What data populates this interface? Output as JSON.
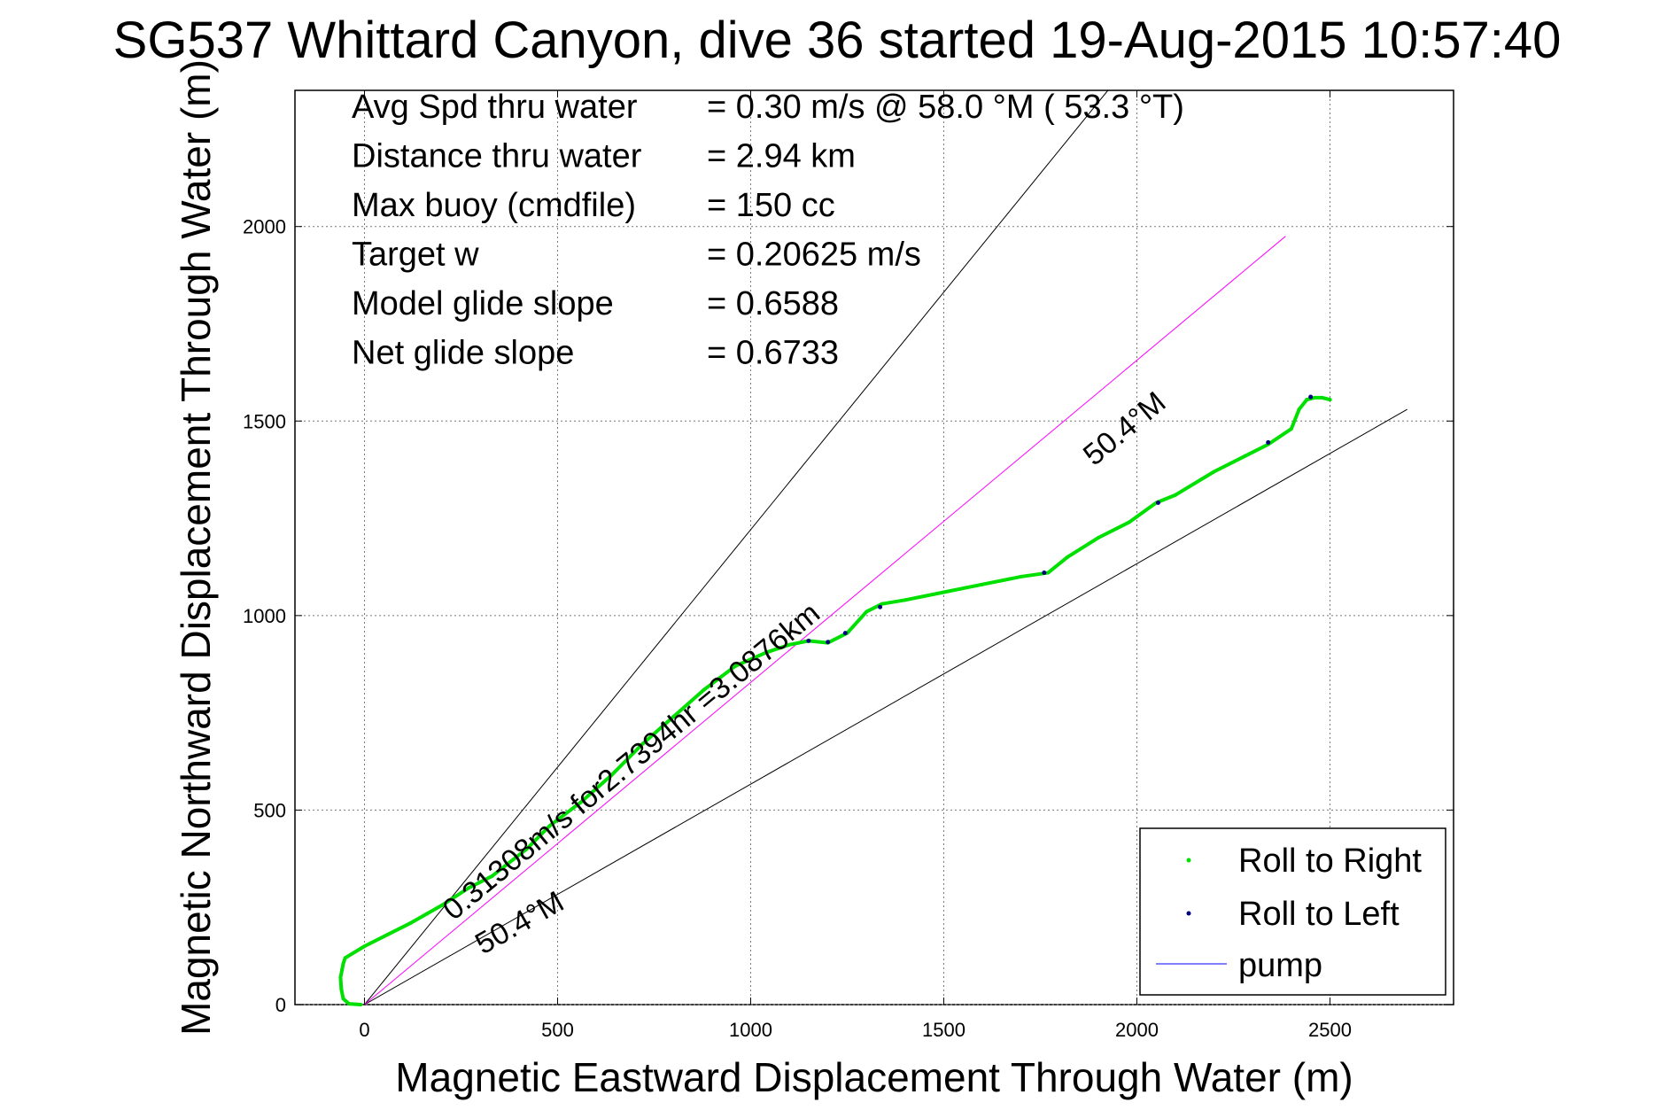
{
  "chart_data": {
    "type": "line",
    "title": "SG537 Whittard Canyon, dive 36 started 19-Aug-2015 10:57:40",
    "xlabel": "Magnetic Eastward Displacement Through Water (m)",
    "ylabel": "Magnetic Northward Displacement Through Water (m)",
    "xlim": [
      -180,
      2820
    ],
    "ylim": [
      0,
      2350
    ],
    "xticks": [
      0,
      500,
      1000,
      1500,
      2000,
      2500
    ],
    "yticks": [
      0,
      500,
      1000,
      1500,
      2000
    ],
    "grid": true,
    "legend_position": "bottom-right",
    "legend": [
      {
        "label": "Roll to Right",
        "color": "#00e000",
        "marker": "dot"
      },
      {
        "label": "Roll to Left",
        "color": "#000080",
        "marker": "dot"
      },
      {
        "label": "pump",
        "color": "#0000ff",
        "marker": "line"
      }
    ],
    "stats": [
      {
        "label": "Avg Spd thru water",
        "value": "=  0.30 m/s @  58.0 °M ( 53.3 °T)"
      },
      {
        "label": "Distance thru water",
        "value": "=  2.94 km"
      },
      {
        "label": "Max buoy (cmdfile)",
        "value": "= 150 cc"
      },
      {
        "label": "Target w",
        "value": "= 0.20625 m/s"
      },
      {
        "label": "Model glide slope",
        "value": "= 0.6588"
      },
      {
        "label": "Net glide slope",
        "value": "= 0.6733"
      }
    ],
    "annotations": {
      "current": "0.31308m/s for2.7394hr =3.0876km",
      "heading_upper": "50.4°M",
      "heading_lower": "50.4°M"
    },
    "reference_lines": [
      {
        "name": "sector-upper",
        "color": "#000000",
        "x": [
          0,
          1925
        ],
        "y": [
          0,
          2350
        ]
      },
      {
        "name": "sector-lower",
        "color": "#000000",
        "x": [
          0,
          2700
        ],
        "y": [
          0,
          1530
        ]
      },
      {
        "name": "heading-50.4M",
        "color": "#ff00ff",
        "x": [
          0,
          2385
        ],
        "y": [
          0,
          1975
        ]
      }
    ],
    "series": [
      {
        "name": "Roll to Right",
        "color": "#00e000",
        "x": [
          -10,
          -40,
          -55,
          -60,
          -62,
          -58,
          -55,
          -50,
          0,
          60,
          120,
          200,
          270,
          330,
          420,
          480,
          560,
          640,
          720,
          800,
          880,
          960,
          1040,
          1100,
          1150,
          1200,
          1250,
          1300,
          1340,
          1400,
          1500,
          1600,
          1700,
          1770,
          1820,
          1900,
          1980,
          2050,
          2100,
          2200,
          2280,
          2340,
          2400,
          2420,
          2440,
          2460,
          2480,
          2500
        ],
        "y": [
          0,
          2,
          15,
          40,
          70,
          90,
          105,
          120,
          150,
          180,
          210,
          255,
          300,
          330,
          400,
          460,
          520,
          590,
          670,
          740,
          810,
          870,
          905,
          925,
          935,
          930,
          955,
          1010,
          1030,
          1040,
          1060,
          1080,
          1100,
          1110,
          1150,
          1200,
          1240,
          1290,
          1310,
          1370,
          1410,
          1440,
          1480,
          1530,
          1555,
          1560,
          1560,
          1555
        ]
      },
      {
        "name": "Roll to Left",
        "color": "#000080",
        "x": [
          1150,
          1200,
          1245,
          1335,
          1760,
          2055,
          2340,
          2450
        ],
        "y": [
          935,
          932,
          955,
          1022,
          1110,
          1290,
          1445,
          1562
        ]
      }
    ]
  }
}
